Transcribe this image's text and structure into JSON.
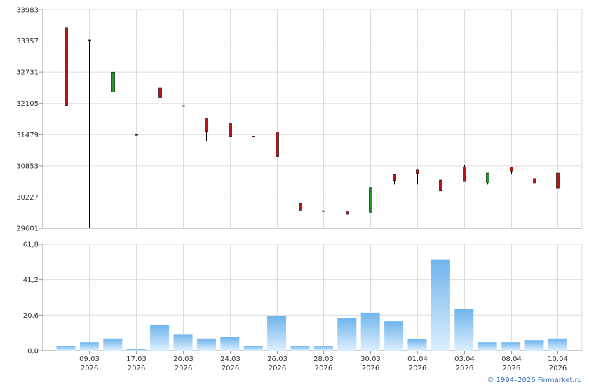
{
  "chart_data": [
    {
      "type": "candlestick",
      "y_ticks": [
        "29601",
        "30227",
        "30853",
        "31479",
        "32105",
        "32731",
        "33357",
        "33983"
      ],
      "ylim": [
        29601,
        33983
      ],
      "grid": true,
      "colors": {
        "up": "#1f9e1f",
        "down": "#b81515",
        "wick": "#000000"
      },
      "candles": [
        {
          "open": 33620,
          "close": 32060,
          "high": 33620,
          "low": 32060
        },
        {
          "open": 33380,
          "close": 33380,
          "high": 33380,
          "low": 29601
        },
        {
          "open": 32330,
          "close": 32730,
          "high": 32730,
          "low": 32330
        },
        {
          "open": 31480,
          "close": 31480,
          "high": 31480,
          "low": 31480
        },
        {
          "open": 32410,
          "close": 32220,
          "high": 32410,
          "low": 32220
        },
        {
          "open": 32060,
          "close": 32060,
          "high": 32060,
          "low": 32060
        },
        {
          "open": 31810,
          "close": 31540,
          "high": 31810,
          "low": 31350
        },
        {
          "open": 31700,
          "close": 31440,
          "high": 31700,
          "low": 31440
        },
        {
          "open": 31450,
          "close": 31450,
          "high": 31450,
          "low": 31450
        },
        {
          "open": 31530,
          "close": 31040,
          "high": 31530,
          "low": 31040
        },
        {
          "open": 30100,
          "close": 29960,
          "high": 30100,
          "low": 29960
        },
        {
          "open": 29950,
          "close": 29950,
          "high": 29950,
          "low": 29950
        },
        {
          "open": 29930,
          "close": 29880,
          "high": 29930,
          "low": 29880
        },
        {
          "open": 29920,
          "close": 30420,
          "high": 30420,
          "low": 29920
        },
        {
          "open": 30680,
          "close": 30560,
          "high": 30680,
          "low": 30480
        },
        {
          "open": 30770,
          "close": 30700,
          "high": 30770,
          "low": 30480
        },
        {
          "open": 30570,
          "close": 30350,
          "high": 30570,
          "low": 30350
        },
        {
          "open": 30830,
          "close": 30540,
          "high": 30880,
          "low": 30540
        },
        {
          "open": 30510,
          "close": 30710,
          "high": 30710,
          "low": 30480
        },
        {
          "open": 30830,
          "close": 30750,
          "high": 30830,
          "low": 30680
        },
        {
          "open": 30600,
          "close": 30500,
          "high": 30600,
          "low": 30500
        },
        {
          "open": 30710,
          "close": 30400,
          "high": 30710,
          "low": 30400
        }
      ]
    },
    {
      "type": "bar",
      "y_ticks": [
        "0,0",
        "20,6",
        "41,2",
        "61,8"
      ],
      "ylim": [
        0,
        61.8
      ],
      "grid": true,
      "colors": {
        "bar_top": "#6fb4ec",
        "bar_bottom": "#dcefff"
      },
      "values": [
        2.8,
        4.8,
        7,
        0.8,
        15,
        9.6,
        7,
        7.8,
        2.8,
        20,
        2.8,
        2.8,
        19,
        22,
        17,
        6.8,
        53,
        24,
        4.8,
        4.8,
        6,
        7
      ],
      "x_tick_labels": [
        {
          "day": "09.03",
          "year": "2026"
        },
        {
          "day": "17.03",
          "year": "2026"
        },
        {
          "day": "20.03",
          "year": "2026"
        },
        {
          "day": "24.03",
          "year": "2026"
        },
        {
          "day": "26.03",
          "year": "2026"
        },
        {
          "day": "28.03",
          "year": "2026"
        },
        {
          "day": "30.03",
          "year": "2026"
        },
        {
          "day": "01.04",
          "year": "2026"
        },
        {
          "day": "03.04",
          "year": "2026"
        },
        {
          "day": "08.04",
          "year": "2026"
        },
        {
          "day": "10.04",
          "year": "2026"
        }
      ]
    }
  ],
  "footer": {
    "copyright": "© 1994–2026 Finmarket.ru"
  }
}
